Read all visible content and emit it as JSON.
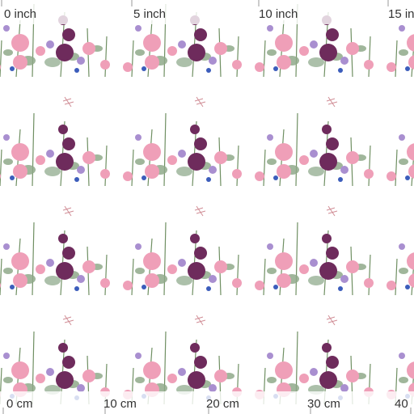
{
  "ruler_top": {
    "labels": [
      "0 inch",
      "5 inch",
      "10 inch",
      "15 in"
    ]
  },
  "ruler_bottom": {
    "labels": [
      "0 cm",
      "10 cm",
      "20 cm",
      "30 cm",
      "40"
    ]
  }
}
